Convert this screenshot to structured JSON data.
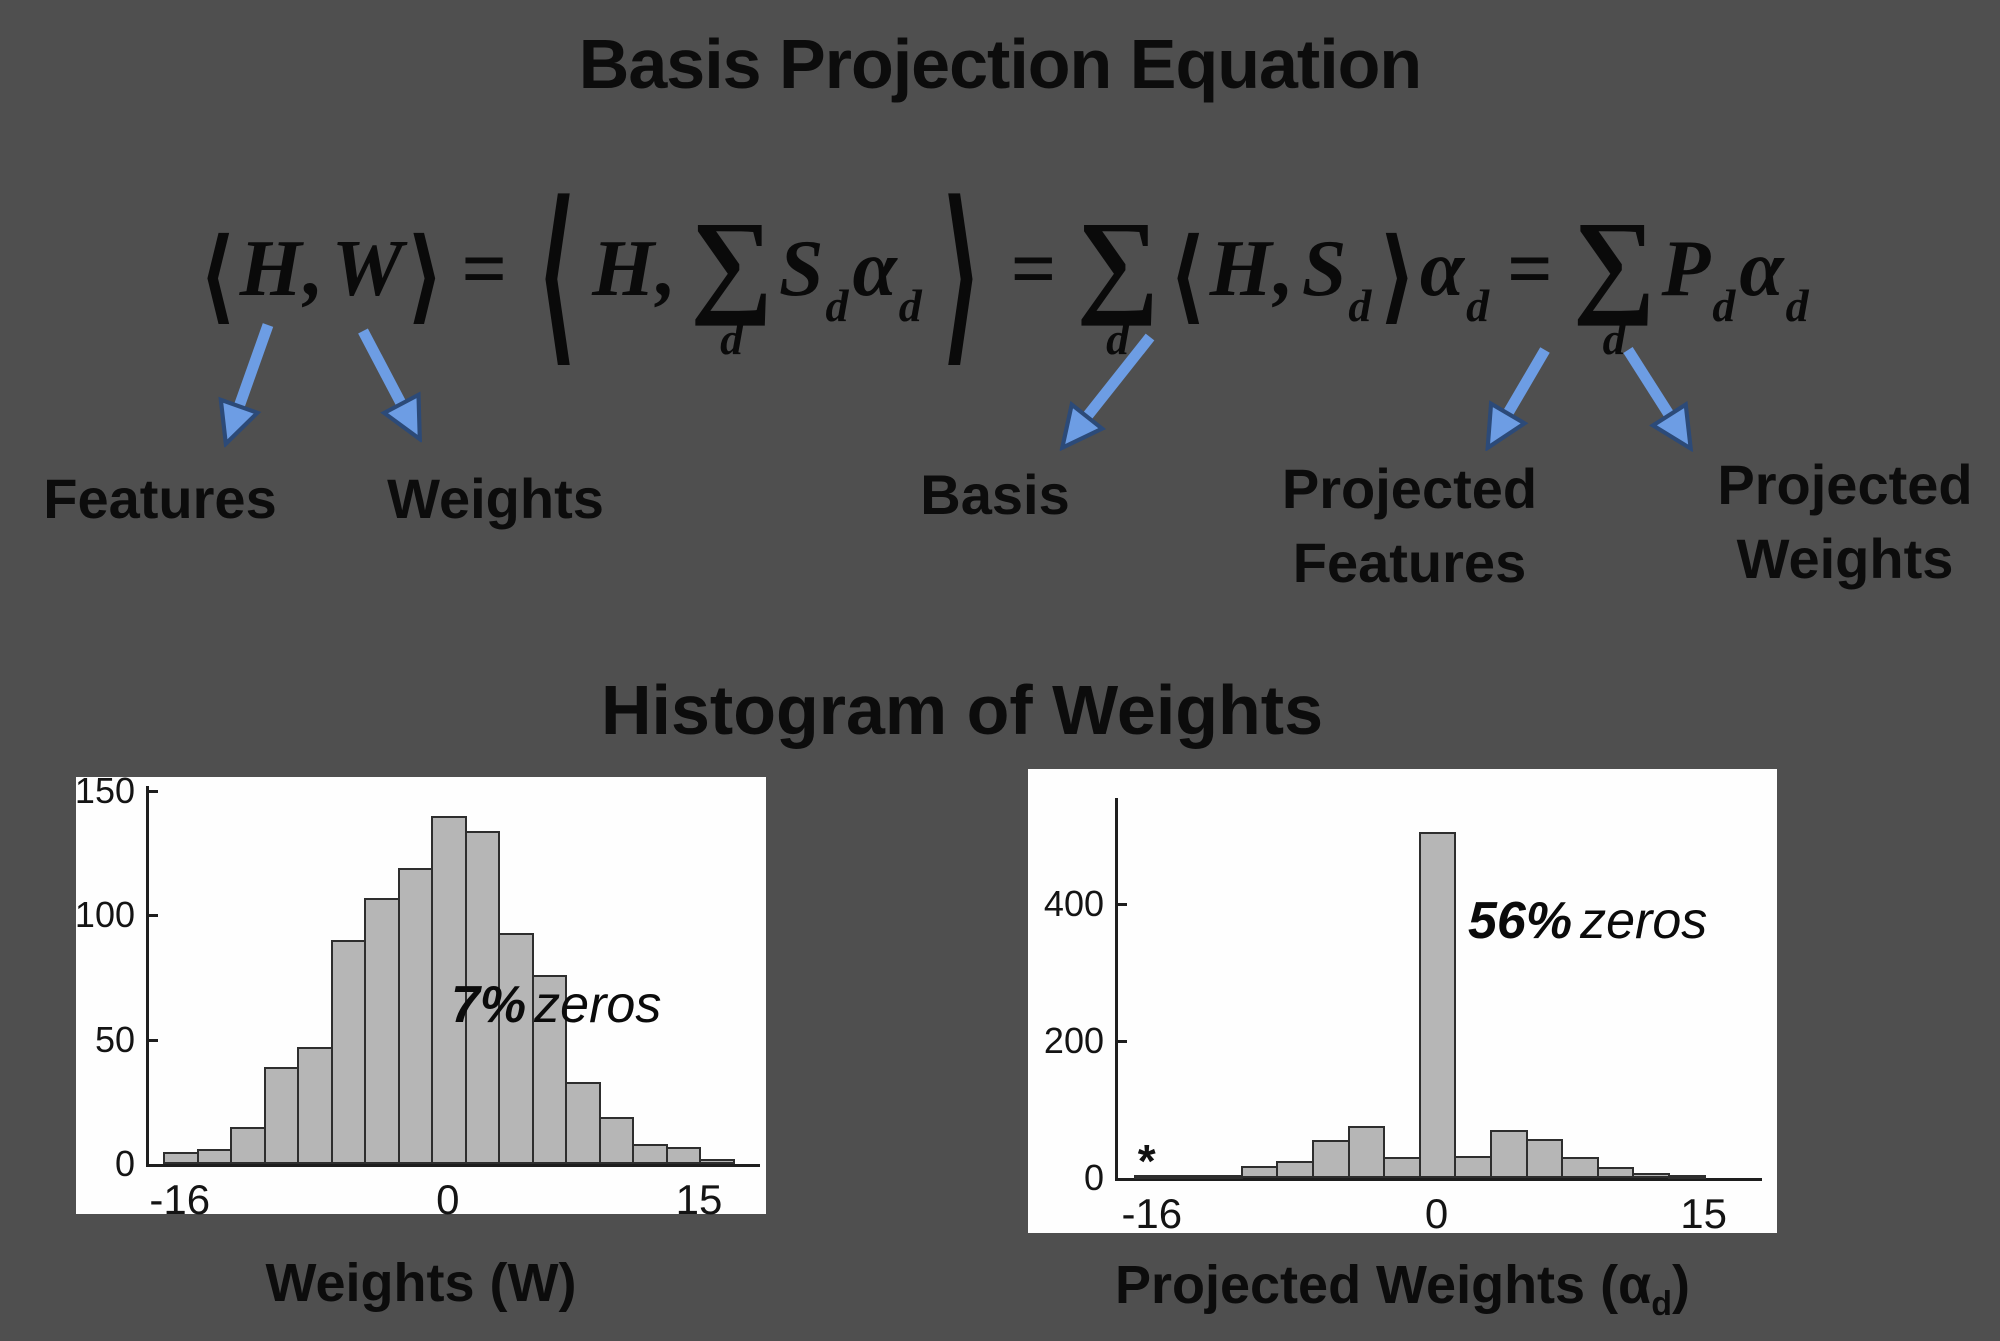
{
  "title": "Basis Projection Equation",
  "section_heading": "Histogram of Weights",
  "equation": {
    "angle_open": "⟨",
    "angle_close": "⟩",
    "H": "H",
    "W": "W",
    "comma": ",",
    "equals": "=",
    "sum": "∑",
    "sum_index": "d",
    "S": "S",
    "sub_d": "d",
    "alpha": "α",
    "P": "P"
  },
  "callouts": {
    "features": "Features",
    "weights": "Weights",
    "basis": "Basis",
    "projected_features_line1": "Projected",
    "projected_features_line2": "Features",
    "projected_weights_line1": "Projected",
    "projected_weights_line2": "Weights"
  },
  "captions": {
    "left": "Weights (W)",
    "right_prefix": "Projected Weights (α",
    "right_subscript": "d",
    "right_suffix": ")"
  },
  "colors": {
    "background": "#4f4f4f",
    "text": "#0c0c0c",
    "arrow_fill": "#6d9de4",
    "arrow_edge": "#2c4a78",
    "panel": "#fefefe",
    "bar_fill": "#b6b6b6",
    "bar_edge": "#2e2e2e"
  },
  "chart_data": [
    {
      "type": "bar",
      "subtype": "histogram",
      "title": "",
      "xlabel": "Weights (W)",
      "ylabel": "",
      "bin_centers": [
        -16,
        -14,
        -12,
        -10,
        -8,
        -6,
        -4,
        -2,
        0,
        2,
        4,
        6,
        8,
        10,
        12,
        14,
        16
      ],
      "values": [
        5,
        6,
        15,
        39,
        47,
        90,
        107,
        119,
        140,
        134,
        93,
        76,
        33,
        19,
        8,
        7,
        2
      ],
      "yticks": [
        0,
        50,
        100,
        150
      ],
      "xticks": [
        -16,
        0,
        15
      ],
      "ylim": [
        0,
        152
      ],
      "grid": false,
      "legend": null,
      "annotation_strong": "7%",
      "annotation_rest": "zeros",
      "bar_fill": "#b6b6b6",
      "bar_edge": "#2e2e2e"
    },
    {
      "type": "bar",
      "subtype": "histogram",
      "title": "",
      "xlabel": "Projected Weights (αd)",
      "ylabel": "",
      "bin_centers": [
        -16,
        -14,
        -12,
        -10,
        -8,
        -6,
        -4,
        -2,
        0,
        2,
        4,
        6,
        8,
        10,
        12,
        14
      ],
      "values": [
        2,
        1,
        3,
        18,
        25,
        56,
        76,
        30,
        505,
        32,
        70,
        57,
        31,
        16,
        7,
        4
      ],
      "yticks": [
        0,
        200,
        400
      ],
      "xticks": [
        -16,
        0,
        15
      ],
      "ylim": [
        0,
        555
      ],
      "grid": false,
      "legend": null,
      "annotation_strong": "56%",
      "annotation_rest": "zeros",
      "star_marker": {
        "x": -16,
        "y": 15,
        "glyph": "*"
      },
      "bar_fill": "#b6b6b6",
      "bar_edge": "#2e2e2e"
    }
  ]
}
